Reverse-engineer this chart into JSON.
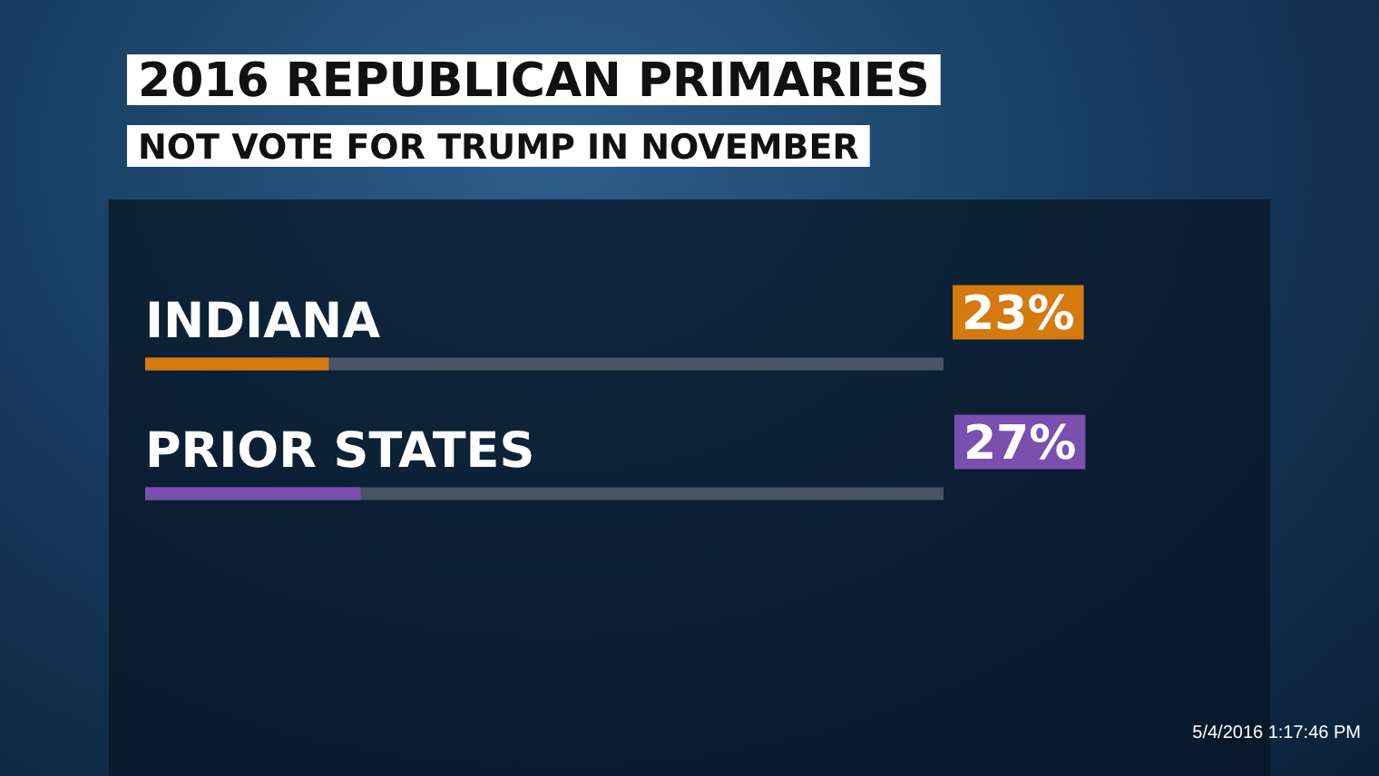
{
  "chart_data": {
    "type": "bar",
    "orientation": "horizontal",
    "title": "2016 REPUBLICAN PRIMARIES",
    "subtitle": "NOT VOTE FOR TRUMP IN NOVEMBER",
    "categories": [
      "INDIANA",
      "PRIOR STATES"
    ],
    "values": [
      23,
      27
    ],
    "colors": [
      "#d57a0e",
      "#7a4fae"
    ],
    "value_labels": [
      "23%",
      "27%"
    ],
    "xlim": [
      0,
      100
    ],
    "annotations": [
      "5/4/2016 1:17:46 PM"
    ]
  }
}
